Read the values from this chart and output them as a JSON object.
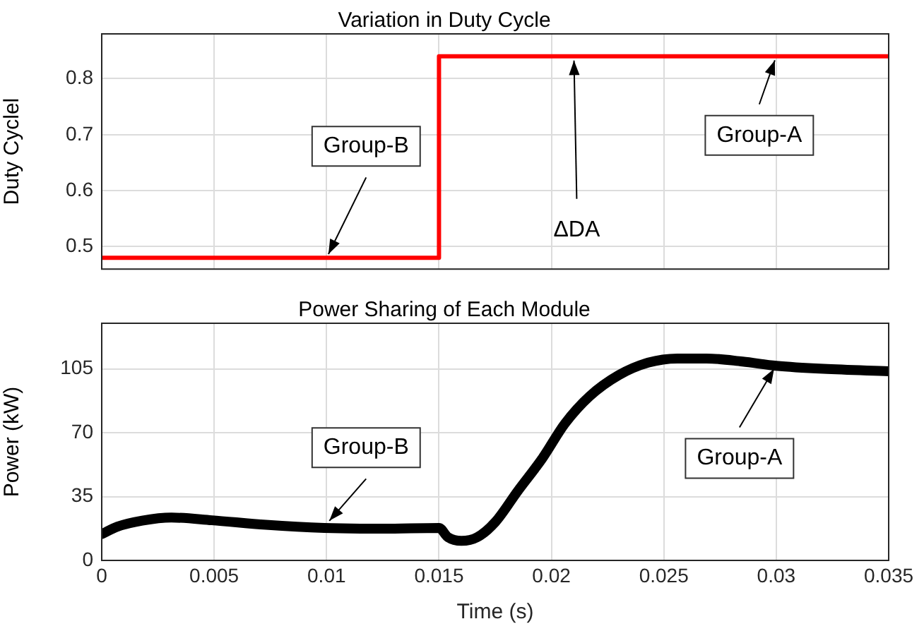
{
  "chart_data": [
    {
      "type": "step",
      "title": "Variation in Duty Cycle",
      "ylabel": "Duty Cyclel",
      "x": [
        0,
        0.015,
        0.035
      ],
      "xlim": [
        0,
        0.035
      ],
      "xticks": [
        0,
        0.005,
        0.01,
        0.015,
        0.02,
        0.025,
        0.03,
        0.035
      ],
      "ylim": [
        0.46,
        0.88
      ],
      "yticks": [
        0.5,
        0.6,
        0.7,
        0.8
      ],
      "tick_labels": "y",
      "grid": true,
      "legend": false,
      "series": [
        {
          "color": "#ff0000",
          "values": [
            0.48,
            0.84,
            0.84
          ]
        }
      ],
      "annotations": [
        {
          "text": "Group-B",
          "x": 0.01,
          "y": 0.48
        },
        {
          "text": "ΔDA",
          "x": 0.021,
          "y": 0.84
        },
        {
          "text": "Group-A",
          "x": 0.03,
          "y": 0.84
        }
      ]
    },
    {
      "type": "line",
      "title": "Power Sharing of Each Module",
      "xlabel": "Time (s)",
      "ylabel": "Power (kW)",
      "xlim": [
        0,
        0.035
      ],
      "xticks": [
        0,
        0.005,
        0.01,
        0.015,
        0.02,
        0.025,
        0.03,
        0.035
      ],
      "ylim": [
        0,
        130
      ],
      "yticks": [
        0,
        35,
        70,
        105
      ],
      "grid": true,
      "legend": false,
      "x": [
        0,
        0.0007,
        0.0018,
        0.0031,
        0.0049,
        0.0073,
        0.0099,
        0.0125,
        0.015,
        0.0154,
        0.016,
        0.0167,
        0.0175,
        0.0185,
        0.0196,
        0.0206,
        0.0217,
        0.023,
        0.0243,
        0.0256,
        0.0269,
        0.0285,
        0.03,
        0.0321,
        0.035
      ],
      "series": [
        {
          "color": "#000000",
          "values": [
            14.4,
            18.5,
            21.8,
            23.5,
            22,
            19.5,
            17.8,
            17.4,
            17.8,
            12.7,
            10.7,
            12.7,
            21,
            38,
            56,
            75,
            90,
            101.6,
            108.4,
            110.7,
            110.7,
            109,
            106.7,
            105,
            103.7
          ]
        }
      ],
      "annotations": [
        {
          "text": "Group-B",
          "x": 0.01,
          "y": 20
        },
        {
          "text": "Group-A",
          "x": 0.03,
          "y": 107
        }
      ]
    }
  ]
}
